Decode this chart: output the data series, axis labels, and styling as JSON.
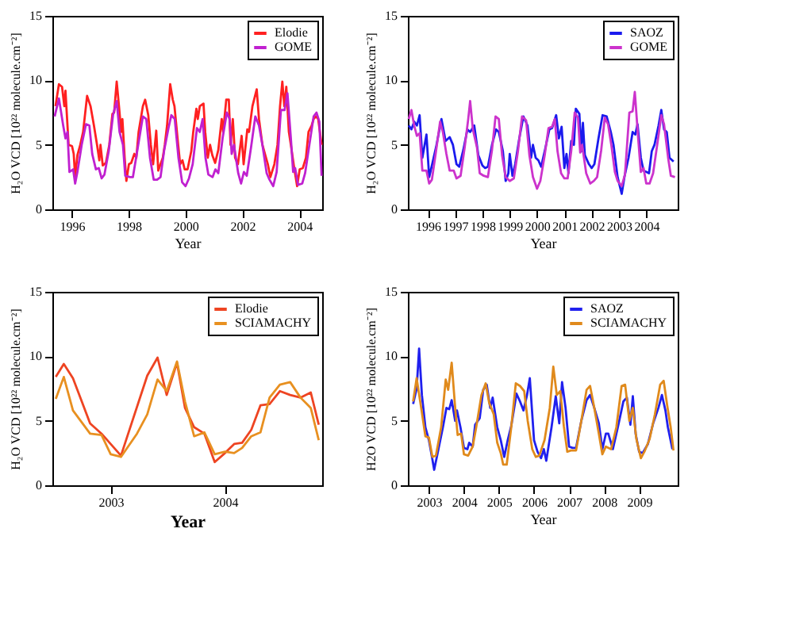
{
  "chart_data": [
    {
      "type": "line",
      "xlabel": "Year",
      "ylabel": "H₂O VCD [10²² molecule.cm⁻²]",
      "xlim": [
        1995.32,
        2004.8
      ],
      "xticks": [
        1996,
        1998,
        2000,
        2002,
        2004
      ],
      "ylim": [
        0,
        15
      ],
      "yticks": [
        0,
        5,
        10,
        15
      ],
      "grid": false,
      "legend": "top right",
      "series": [
        {
          "name": "Elodie",
          "color": "#ff2020",
          "x": [
            1995.43,
            1995.55,
            1995.66,
            1995.74,
            1995.78,
            1995.89,
            1996.01,
            1996.07,
            1996.12,
            1996.2,
            1996.3,
            1996.4,
            1996.54,
            1996.66,
            1996.78,
            1996.89,
            1996.97,
            1997.01,
            1997.09,
            1997.2,
            1997.32,
            1997.43,
            1997.49,
            1997.58,
            1997.66,
            1997.74,
            1997.78,
            1997.86,
            1997.92,
            1998.01,
            1998.09,
            1998.2,
            1998.27,
            1998.35,
            1998.5,
            1998.58,
            1998.69,
            1998.78,
            1998.86,
            1998.97,
            1999.04,
            1999.12,
            1999.2,
            1999.27,
            1999.35,
            1999.46,
            1999.55,
            1999.61,
            1999.74,
            1999.81,
            1999.89,
            1999.97,
            2000.07,
            2000.2,
            2000.27,
            2000.38,
            2000.43,
            2000.5,
            2000.63,
            2000.69,
            2000.78,
            2000.86,
            2000.94,
            2001.04,
            2001.15,
            2001.27,
            2001.32,
            2001.43,
            2001.52,
            2001.58,
            2001.66,
            2001.74,
            2001.84,
            2001.97,
            2002.04,
            2002.17,
            2002.23,
            2002.35,
            2002.5,
            2002.58,
            2002.7,
            2002.89,
            2002.98,
            2003.12,
            2003.23,
            2003.32,
            2003.4,
            2003.47,
            2003.54,
            2003.63,
            2003.7,
            2003.81,
            2003.92,
            2004.01,
            2004.12,
            2004.23,
            2004.32,
            2004.43,
            2004.5,
            2004.58,
            2004.66,
            2004.78
          ],
          "values": [
            8,
            9.7,
            9.5,
            8,
            9.2,
            5,
            4.9,
            4.3,
            2.5,
            4.2,
            5,
            6,
            8.8,
            8,
            6.5,
            5,
            3.8,
            5,
            3.4,
            3.6,
            5,
            7.4,
            7.5,
            9.9,
            8,
            6,
            7,
            4,
            2.2,
            3.5,
            3.6,
            4.3,
            4,
            6,
            8,
            8.5,
            7.3,
            5,
            3.5,
            6.1,
            3,
            3.5,
            4,
            5,
            6.5,
            9.7,
            8.5,
            8,
            5,
            3.5,
            3.8,
            3.1,
            3.1,
            4.5,
            6,
            7.8,
            7,
            8,
            8.2,
            6,
            4,
            5,
            4.2,
            3.6,
            4.6,
            7,
            6,
            8.5,
            8.5,
            5,
            7,
            4,
            3.5,
            5.7,
            3.5,
            6.2,
            6,
            8,
            9.3,
            7,
            5,
            3.5,
            2.5,
            3.5,
            5,
            8,
            9.9,
            8,
            9.5,
            6,
            5,
            3.3,
            1.8,
            3.1,
            3.2,
            4,
            6,
            6.5,
            7,
            7.2,
            7,
            5
          ]
        },
        {
          "name": "GOME",
          "color": "#c020d0",
          "x": [
            1995.4,
            1995.55,
            1995.7,
            1995.78,
            1995.85,
            1995.92,
            1996.05,
            1996.12,
            1996.2,
            1996.35,
            1996.5,
            1996.62,
            1996.72,
            1996.85,
            1996.95,
            1997.05,
            1997.15,
            1997.3,
            1997.45,
            1997.58,
            1997.68,
            1997.8,
            1997.88,
            1998.05,
            1998.15,
            1998.3,
            1998.5,
            1998.62,
            1998.75,
            1998.88,
            1999.0,
            1999.12,
            1999.25,
            1999.4,
            1999.5,
            1999.62,
            1999.75,
            1999.88,
            2000.0,
            2000.12,
            2000.25,
            2000.4,
            2000.5,
            2000.6,
            2000.7,
            2000.8,
            2000.95,
            2001.05,
            2001.15,
            2001.3,
            2001.45,
            2001.55,
            2001.62,
            2001.7,
            2001.85,
            2001.95,
            2002.05,
            2002.15,
            2002.3,
            2002.45,
            2002.58,
            2002.7,
            2002.85,
            2002.95,
            2003.08,
            2003.2,
            2003.35,
            2003.48,
            2003.58,
            2003.7,
            2003.78,
            2003.85,
            2003.95,
            2004.1,
            2004.2,
            2004.35,
            2004.5,
            2004.6,
            2004.7,
            2004.78
          ],
          "values": [
            7.2,
            8.6,
            6.5,
            5.5,
            6,
            2.9,
            3.1,
            2,
            2.9,
            5,
            6.6,
            6.5,
            4.3,
            3.1,
            3.2,
            2.4,
            2.7,
            4.5,
            7.3,
            8.4,
            6,
            5,
            2.6,
            2.5,
            2.5,
            4.5,
            7.2,
            7,
            4,
            2.3,
            2.3,
            2.5,
            4.6,
            6.3,
            7.3,
            7,
            4,
            2.1,
            1.8,
            2.4,
            3.5,
            6.3,
            6,
            7,
            4,
            2.7,
            2.5,
            3.1,
            2.8,
            5.5,
            7.5,
            7,
            4.3,
            5,
            2.8,
            2,
            2.9,
            2.6,
            4.8,
            7.2,
            6.5,
            5,
            2.8,
            2.3,
            1.8,
            2.9,
            7.7,
            7.7,
            9,
            5.5,
            2.9,
            3.2,
            1.9,
            2,
            2.8,
            5,
            7.2,
            7.5,
            6.8,
            2.6
          ]
        }
      ]
    },
    {
      "type": "line",
      "xlabel": "Year",
      "ylabel": "H₂O VCD [10²² molecule.cm⁻²]",
      "xlim": [
        1995.27,
        2005.15
      ],
      "xticks": [
        1996,
        1997,
        1998,
        1999,
        2000,
        2001,
        2002,
        2003,
        2004
      ],
      "ylim": [
        0,
        15
      ],
      "yticks": [
        0,
        5,
        10,
        15
      ],
      "grid": false,
      "legend": "top right",
      "series": [
        {
          "name": "SAOZ",
          "color": "#1a1aee",
          "x": [
            1995.3,
            1995.4,
            1995.5,
            1995.6,
            1995.7,
            1995.8,
            1995.95,
            1996.05,
            1996.15,
            1996.3,
            1996.5,
            1996.65,
            1996.8,
            1996.92,
            1997.05,
            1997.15,
            1997.3,
            1997.45,
            1997.55,
            1997.7,
            1997.85,
            1998.0,
            1998.1,
            1998.2,
            1998.35,
            1998.5,
            1998.6,
            1998.75,
            1998.85,
            1998.95,
            1999.0,
            1999.1,
            1999.2,
            1999.35,
            1999.5,
            1999.65,
            1999.78,
            1999.85,
            1999.95,
            2000.05,
            2000.15,
            2000.3,
            2000.45,
            2000.55,
            2000.7,
            2000.8,
            2000.9,
            2001.0,
            2001.08,
            2001.15,
            2001.25,
            2001.35,
            2001.42,
            2001.55,
            2001.62,
            2001.68,
            2001.75,
            2001.9,
            2002.0,
            2002.1,
            2002.25,
            2002.4,
            2002.55,
            2002.7,
            2002.8,
            2002.95,
            2003.1,
            2003.2,
            2003.35,
            2003.5,
            2003.6,
            2003.68,
            2003.8,
            2003.9,
            2004.0,
            2004.1,
            2004.2,
            2004.3,
            2004.45,
            2004.55,
            2004.65,
            2004.75,
            2004.85,
            2005.0
          ],
          "values": [
            6.5,
            6.2,
            6.8,
            6.5,
            7.3,
            4,
            5.8,
            2.5,
            3.4,
            4.8,
            7,
            5.3,
            5.6,
            5,
            3.5,
            3.3,
            4.6,
            6.2,
            6,
            6.5,
            4.2,
            3.4,
            3.2,
            3.3,
            5,
            6.2,
            6,
            4.5,
            2.2,
            2.8,
            4.3,
            2.6,
            3.5,
            5.5,
            7.2,
            6.5,
            4,
            5,
            4,
            3.8,
            3.3,
            4.7,
            6.2,
            6.3,
            7.3,
            5.5,
            6.4,
            3.2,
            4.3,
            2.8,
            5.3,
            5,
            7.8,
            7.4,
            4.5,
            6.7,
            4.2,
            3.5,
            3.2,
            3.5,
            5.5,
            7.3,
            7.2,
            6,
            5,
            2.5,
            1.2,
            2.5,
            4,
            6,
            5.8,
            6.6,
            4,
            3,
            2.9,
            2.8,
            4.5,
            5,
            6.5,
            7.7,
            6.2,
            6,
            4,
            3.7
          ]
        },
        {
          "name": "GOME",
          "color": "#cc33cc",
          "x": [
            1995.3,
            1995.4,
            1995.5,
            1995.6,
            1995.7,
            1995.8,
            1995.95,
            1996.05,
            1996.15,
            1996.3,
            1996.45,
            1996.55,
            1996.68,
            1996.8,
            1996.95,
            1997.05,
            1997.2,
            1997.35,
            1997.48,
            1997.55,
            1997.65,
            1997.8,
            1997.9,
            1998.05,
            1998.2,
            1998.35,
            1998.48,
            1998.6,
            1998.72,
            1998.85,
            1999.0,
            1999.15,
            1999.3,
            1999.45,
            1999.6,
            1999.72,
            1999.85,
            2000.0,
            2000.12,
            2000.28,
            2000.42,
            2000.55,
            2000.65,
            2000.75,
            2000.88,
            2001.0,
            2001.12,
            2001.25,
            2001.38,
            2001.5,
            2001.58,
            2001.65,
            2001.8,
            2001.95,
            2002.08,
            2002.2,
            2002.35,
            2002.48,
            2002.6,
            2002.72,
            2002.85,
            2002.95,
            2003.1,
            2003.22,
            2003.38,
            2003.5,
            2003.58,
            2003.7,
            2003.8,
            2003.9,
            2004.0,
            2004.12,
            2004.25,
            2004.4,
            2004.55,
            2004.65,
            2004.8,
            2004.9,
            2005.05
          ],
          "values": [
            7,
            7.7,
            6.5,
            5.7,
            5.9,
            3,
            3,
            2,
            2.3,
            4.5,
            6.8,
            6,
            4.3,
            3,
            3,
            2.4,
            2.6,
            4.8,
            7,
            8.4,
            6.2,
            4.8,
            2.8,
            2.6,
            2.5,
            4.6,
            7.2,
            7,
            4.2,
            2.5,
            2.2,
            2.4,
            4.5,
            7.2,
            6.9,
            4.2,
            2.5,
            1.6,
            2.2,
            4.2,
            6.3,
            6.4,
            7,
            4.5,
            2.8,
            2.4,
            2.4,
            4.5,
            7.5,
            7.1,
            4.4,
            5,
            2.8,
            2,
            2.2,
            2.5,
            4.6,
            7.1,
            6.6,
            5,
            2.9,
            2.2,
            1.8,
            2.7,
            7.5,
            7.6,
            9.1,
            5.6,
            2.9,
            3.2,
            2,
            2,
            2.8,
            5,
            7.3,
            6.6,
            4,
            2.6,
            2.5
          ]
        }
      ]
    },
    {
      "type": "line",
      "xlabel": "Year",
      "ylabel": "H₂O VCD [10²² molecule.cm⁻²]",
      "xlim": [
        2002.49,
        2004.85
      ],
      "xticks": [
        2003,
        2004
      ],
      "ylim": [
        0,
        15
      ],
      "yticks": [
        0,
        5,
        10,
        15
      ],
      "grid": false,
      "legend": "top right",
      "series": [
        {
          "name": "Elodie",
          "color": "#ee4422",
          "x": [
            2002.52,
            2002.59,
            2002.67,
            2002.82,
            2002.92,
            2003.09,
            2003.32,
            2003.41,
            2003.49,
            2003.58,
            2003.65,
            2003.73,
            2003.82,
            2003.91,
            2004.0,
            2004.08,
            2004.15,
            2004.23,
            2004.31,
            2004.39,
            2004.48,
            2004.57,
            2004.66,
            2004.75,
            2004.82
          ],
          "values": [
            8.4,
            9.4,
            8.3,
            4.8,
            4,
            2.3,
            8.5,
            9.9,
            7,
            9.5,
            6,
            4.5,
            4,
            1.8,
            2.5,
            3.2,
            3.3,
            4.3,
            6.2,
            6.3,
            7.3,
            7,
            6.8,
            7.2,
            4.7
          ]
        },
        {
          "name": "SCIAMACHY",
          "color": "#e89020",
          "x": [
            2002.52,
            2002.59,
            2002.67,
            2002.82,
            2002.92,
            2003.0,
            2003.09,
            2003.23,
            2003.32,
            2003.41,
            2003.49,
            2003.58,
            2003.65,
            2003.73,
            2003.82,
            2003.91,
            2004.0,
            2004.08,
            2004.15,
            2004.23,
            2004.31,
            2004.39,
            2004.48,
            2004.57,
            2004.66,
            2004.75,
            2004.82
          ],
          "values": [
            6.7,
            8.4,
            5.8,
            4,
            3.9,
            2.4,
            2.2,
            4,
            5.5,
            8.2,
            7.3,
            9.6,
            6.5,
            3.8,
            4.1,
            2.4,
            2.6,
            2.5,
            2.9,
            3.8,
            4.1,
            6.8,
            7.8,
            8,
            6.8,
            6,
            3.5
          ]
        }
      ]
    },
    {
      "type": "line",
      "xlabel": "Year",
      "ylabel": "H2O VCD [10²² molecule.cm⁻²]",
      "xlim": [
        2002.4,
        2010.1
      ],
      "xticks": [
        2003,
        2004,
        2005,
        2006,
        2007,
        2008,
        2009
      ],
      "ylim": [
        0,
        15
      ],
      "yticks": [
        0,
        5,
        10,
        15
      ],
      "grid": false,
      "legend": "top right",
      "series": [
        {
          "name": "SAOZ",
          "color": "#2020ee",
          "x": [
            2002.55,
            2002.65,
            2002.72,
            2002.8,
            2002.9,
            2003.0,
            2003.1,
            2003.15,
            2003.25,
            2003.4,
            2003.5,
            2003.58,
            2003.65,
            2003.75,
            2003.8,
            2003.9,
            2004.0,
            2004.1,
            2004.15,
            2004.25,
            2004.32,
            2004.45,
            2004.55,
            2004.65,
            2004.75,
            2004.82,
            2004.95,
            2005.05,
            2005.15,
            2005.25,
            2005.35,
            2005.5,
            2005.6,
            2005.7,
            2005.8,
            2005.88,
            2006.0,
            2006.1,
            2006.2,
            2006.28,
            2006.35,
            2006.5,
            2006.62,
            2006.72,
            2006.8,
            2006.9,
            2007.0,
            2007.1,
            2007.2,
            2007.35,
            2007.5,
            2007.6,
            2007.72,
            2007.85,
            2007.95,
            2008.05,
            2008.12,
            2008.25,
            2008.4,
            2008.55,
            2008.65,
            2008.75,
            2008.82,
            2008.9,
            2009.0,
            2009.1,
            2009.25,
            2009.4,
            2009.55,
            2009.65,
            2009.75,
            2009.82,
            2009.95
          ],
          "values": [
            6.3,
            7.5,
            10.6,
            7,
            4.5,
            3.5,
            2,
            1.2,
            2.5,
            4.5,
            6,
            5.9,
            6.6,
            5,
            5.8,
            4.5,
            2.9,
            2.8,
            3.3,
            3,
            4.7,
            5.2,
            7.4,
            7.8,
            6,
            6.8,
            4.5,
            3.5,
            2.2,
            3.5,
            4.6,
            7.1,
            6.5,
            5.8,
            7,
            8.3,
            3.5,
            2.6,
            2.1,
            2.8,
            1.9,
            4.5,
            6.9,
            4.8,
            8,
            6,
            3,
            2.9,
            2.9,
            5,
            6.6,
            7,
            6,
            4.8,
            2.8,
            4,
            4,
            2.8,
            4.6,
            6.5,
            6.8,
            4.7,
            6.9,
            4,
            2.6,
            2.5,
            3.2,
            4.8,
            6,
            7,
            5.8,
            4.5,
            2.8
          ]
        },
        {
          "name": "SCIAMACHY",
          "color": "#e08a1c",
          "x": [
            2002.55,
            2002.65,
            2002.78,
            2002.9,
            2003.0,
            2003.1,
            2003.2,
            2003.35,
            2003.48,
            2003.55,
            2003.65,
            2003.75,
            2003.82,
            2003.92,
            2004.0,
            2004.12,
            2004.25,
            2004.35,
            2004.5,
            2004.62,
            2004.72,
            2004.85,
            2004.95,
            2005.05,
            2005.12,
            2005.22,
            2005.35,
            2005.48,
            2005.6,
            2005.72,
            2005.82,
            2005.95,
            2006.05,
            2006.15,
            2006.3,
            2006.45,
            2006.55,
            2006.65,
            2006.75,
            2006.85,
            2006.95,
            2007.05,
            2007.2,
            2007.35,
            2007.5,
            2007.6,
            2007.72,
            2007.85,
            2007.95,
            2008.05,
            2008.2,
            2008.35,
            2008.5,
            2008.6,
            2008.72,
            2008.82,
            2008.92,
            2009.05,
            2009.15,
            2009.3,
            2009.45,
            2009.6,
            2009.7,
            2009.8,
            2009.9,
            2009.98
          ],
          "values": [
            6.5,
            8.3,
            6,
            3.8,
            3.7,
            2.2,
            2.3,
            4.5,
            8.2,
            7.4,
            9.5,
            6,
            3.9,
            4,
            2.4,
            2.3,
            3,
            4.5,
            7,
            7.9,
            6.4,
            5.5,
            3.3,
            2.5,
            1.6,
            1.6,
            4.5,
            7.9,
            7.7,
            7.3,
            5,
            2.8,
            2.2,
            2.3,
            3.5,
            6,
            9.2,
            7,
            7.3,
            4.6,
            2.6,
            2.7,
            2.7,
            5,
            7.4,
            7.7,
            6,
            4,
            2.4,
            3,
            2.8,
            4.5,
            7.7,
            7.8,
            5,
            6,
            3.6,
            2.1,
            2.6,
            3.6,
            5.5,
            7.8,
            8.1,
            6.2,
            4.5,
            2.7
          ]
        }
      ]
    }
  ]
}
